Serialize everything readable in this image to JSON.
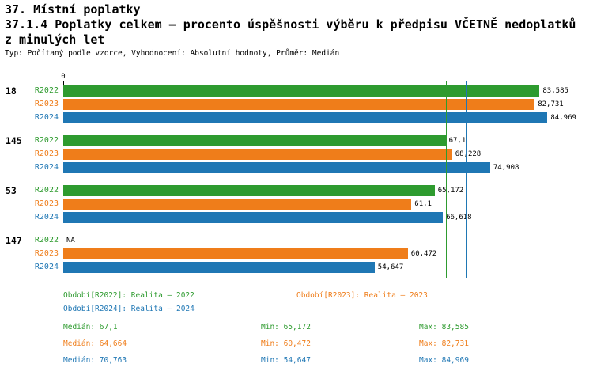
{
  "header": {
    "line1": "37. Místní poplatky",
    "line2": "37.1.4 Poplatky celkem – procento úspěšnosti výběru k předpisu VČETNĚ nedoplatků",
    "line3": "z minulých let",
    "subtitle": "Typ: Počítaný podle vzorce, Vyhodnocení: Absolutní hodnoty, Průměr: Medián"
  },
  "colors": {
    "R2022": "#2e9b2f",
    "R2023": "#ef7d1a",
    "R2024": "#1f77b4",
    "text": "#000000",
    "background": "#ffffff"
  },
  "chart_data": {
    "type": "bar",
    "orientation": "horizontal",
    "title": "37.1.4 Poplatky celkem – procento úspěšnosti výběru k předpisu VČETNĚ nedoplatků z minulých let",
    "axis_origin_label": "0",
    "xlim": [
      0,
      87
    ],
    "series_names": [
      "R2022",
      "R2023",
      "R2024"
    ],
    "groups": [
      {
        "label": "18",
        "bars": [
          {
            "series": "R2022",
            "value": 83.585,
            "display": "83,585"
          },
          {
            "series": "R2023",
            "value": 82.731,
            "display": "82,731"
          },
          {
            "series": "R2024",
            "value": 84.969,
            "display": "84,969"
          }
        ]
      },
      {
        "label": "145",
        "bars": [
          {
            "series": "R2022",
            "value": 67.1,
            "display": "67,1"
          },
          {
            "series": "R2023",
            "value": 68.228,
            "display": "68,228"
          },
          {
            "series": "R2024",
            "value": 74.908,
            "display": "74,908"
          }
        ]
      },
      {
        "label": "53",
        "bars": [
          {
            "series": "R2022",
            "value": 65.172,
            "display": "65,172"
          },
          {
            "series": "R2023",
            "value": 61.1,
            "display": "61,1"
          },
          {
            "series": "R2024",
            "value": 66.618,
            "display": "66,618"
          }
        ]
      },
      {
        "label": "147",
        "bars": [
          {
            "series": "R2022",
            "value": null,
            "display": "NA"
          },
          {
            "series": "R2023",
            "value": 60.472,
            "display": "60,472"
          },
          {
            "series": "R2024",
            "value": 54.647,
            "display": "54,647"
          }
        ]
      }
    ],
    "median_lines": [
      {
        "series": "R2022",
        "value": 67.1
      },
      {
        "series": "R2023",
        "value": 64.664
      },
      {
        "series": "R2024",
        "value": 70.763
      }
    ]
  },
  "legend": [
    {
      "series": "R2022",
      "label": "Období[R2022]: Realita – 2022"
    },
    {
      "series": "R2023",
      "label": "Období[R2023]: Realita – 2023"
    },
    {
      "series": "R2024",
      "label": "Období[R2024]: Realita – 2024"
    }
  ],
  "stats": [
    {
      "series": "R2022",
      "median": "Medián: 67,1",
      "min": "Min: 65,172",
      "max": "Max: 83,585"
    },
    {
      "series": "R2023",
      "median": "Medián: 64,664",
      "min": "Min: 60,472",
      "max": "Max: 82,731"
    },
    {
      "series": "R2024",
      "median": "Medián: 70,763",
      "min": "Min: 54,647",
      "max": "Max: 84,969"
    }
  ]
}
